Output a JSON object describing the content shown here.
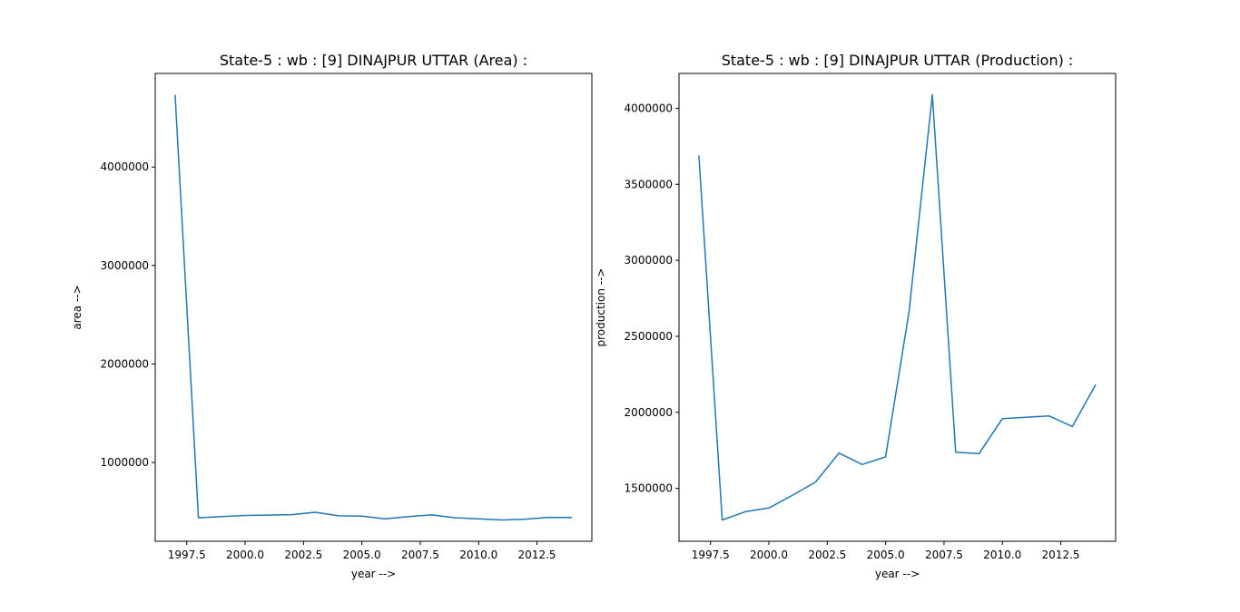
{
  "chart_data": [
    {
      "type": "line",
      "title": "State-5 : wb : [9] DINAJPUR UTTAR (Area) :",
      "xlabel": "year -->",
      "ylabel": "area -->",
      "xlim": [
        1996.15,
        2014.85
      ],
      "ylim": [
        200000,
        4950000
      ],
      "xticks": [
        1997.5,
        2000.0,
        2002.5,
        2005.0,
        2007.5,
        2010.0,
        2012.5
      ],
      "xtick_labels": [
        "1997.5",
        "2000.0",
        "2002.5",
        "2005.0",
        "2007.5",
        "2010.0",
        "2012.5"
      ],
      "yticks": [
        1000000,
        2000000,
        3000000,
        4000000
      ],
      "ytick_labels": [
        "1000000",
        "2000000",
        "3000000",
        "4000000"
      ],
      "grid": false,
      "color": "#1f77b4",
      "x": [
        1997,
        1998,
        1999,
        2000,
        2001,
        2002,
        2003,
        2004,
        2005,
        2006,
        2007,
        2008,
        2009,
        2010,
        2011,
        2012,
        2013,
        2014
      ],
      "y": [
        4734000,
        438000,
        450000,
        462000,
        466000,
        471000,
        495000,
        459000,
        456000,
        428000,
        450000,
        468000,
        438000,
        428000,
        416000,
        425000,
        443000,
        440000
      ]
    },
    {
      "type": "line",
      "title": "State-5 : wb : [9] DINAJPUR UTTAR (Production) :",
      "xlabel": "year -->",
      "ylabel": "production -->",
      "xlim": [
        1996.15,
        2014.85
      ],
      "ylim": [
        1152000,
        4229000
      ],
      "xticks": [
        1997.5,
        2000.0,
        2002.5,
        2005.0,
        2007.5,
        2010.0,
        2012.5
      ],
      "xtick_labels": [
        "1997.5",
        "2000.0",
        "2002.5",
        "2005.0",
        "2007.5",
        "2010.0",
        "2012.5"
      ],
      "yticks": [
        1500000,
        2000000,
        2500000,
        3000000,
        3500000,
        4000000
      ],
      "ytick_labels": [
        "1500000",
        "2000000",
        "2500000",
        "3000000",
        "3500000",
        "4000000"
      ],
      "grid": false,
      "color": "#1f77b4",
      "x": [
        1997,
        1998,
        1999,
        2000,
        2001,
        2002,
        2003,
        2004,
        2005,
        2006,
        2007,
        2008,
        2009,
        2010,
        2011,
        2012,
        2013,
        2014
      ],
      "y": [
        3690000,
        1292000,
        1347000,
        1371000,
        1454000,
        1542000,
        1732000,
        1657000,
        1707000,
        2661000,
        4089000,
        1738000,
        1728000,
        1958000,
        1968000,
        1976000,
        1907000,
        2183000
      ]
    }
  ]
}
